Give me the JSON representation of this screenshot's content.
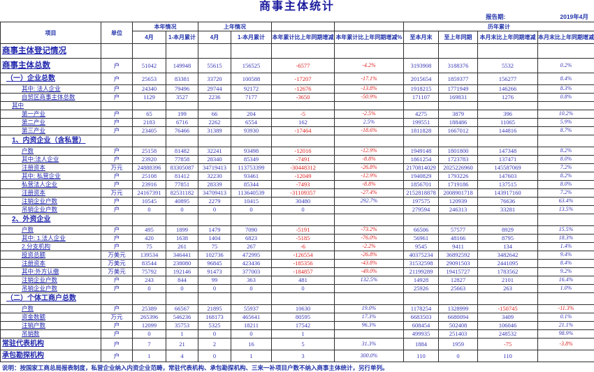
{
  "title": "商事主体统计",
  "report_period_label": "报告期:",
  "report_period_value": "2019年4月",
  "header": {
    "item": "项目",
    "unit": "单位",
    "this_year_group": "本年情况",
    "last_year_group": "上年情况",
    "historical_group": "历年累计",
    "month": "4月",
    "ytd": "1-本月累计",
    "ytd_change": "本年累计比上年同期增减",
    "ytd_change_pct": "本年累计比上年同期增减%",
    "to_month_end": "至本月末",
    "to_last_year_same_period": "至上年同期",
    "month_end_change": "本月末比上年同期增减",
    "month_end_change_pct": "本月末比上年同期增减%"
  },
  "rows": [
    {
      "label": "商事主体登记情况",
      "unit": "",
      "style": "r-tall",
      "indent": 0,
      "values": [
        "",
        "",
        "",
        "",
        "",
        "",
        "",
        "",
        "",
        ""
      ]
    },
    {
      "label": "商事主体总数",
      "unit": "户",
      "style": "r-tall",
      "indent": 0,
      "values": [
        "51042",
        "149948",
        "55615",
        "156525",
        "-6577",
        "-4.2%",
        "3193908",
        "3188376",
        "5532",
        "0.2%"
      ]
    },
    {
      "label": "（一）企业总数",
      "unit": "户",
      "style": "r-sec",
      "indent": 1,
      "values": [
        "25653",
        "83381",
        "33720",
        "100588",
        "-17207",
        "-17.1%",
        "2015654",
        "1859377",
        "156277",
        "8.4%"
      ]
    },
    {
      "label": "其中: 法人企业",
      "unit": "户",
      "style": "r-norm",
      "indent": 3,
      "values": [
        "24340",
        "79496",
        "29744",
        "92172",
        "-12676",
        "-13.8%",
        "1918215",
        "1771949",
        "146266",
        "8.3%"
      ]
    },
    {
      "label": "自贸区商事主体总数",
      "unit": "户",
      "style": "r-norm",
      "indent": 3,
      "values": [
        "1129",
        "3527",
        "2236",
        "7177",
        "-3650",
        "-50.9%",
        "171107",
        "169831",
        "1276",
        "0.8%"
      ]
    },
    {
      "label": "其中",
      "unit": "",
      "style": "r-norm",
      "indent": 2,
      "values": [
        "",
        "",
        "",
        "",
        "",
        "",
        "",
        "",
        "",
        ""
      ]
    },
    {
      "label": "第一产业",
      "unit": "户",
      "style": "r-norm",
      "indent": 3,
      "values": [
        "65",
        "199",
        "66",
        "204",
        "-5",
        "-2.5%",
        "4275",
        "3879",
        "396",
        "10.2%"
      ]
    },
    {
      "label": "第二产业",
      "unit": "户",
      "style": "r-norm",
      "indent": 3,
      "values": [
        "2183",
        "6716",
        "2262",
        "6554",
        "162",
        "2.5%",
        "199551",
        "188486",
        "11065",
        "5.9%"
      ]
    },
    {
      "label": "第三产业",
      "unit": "户",
      "style": "r-norm",
      "indent": 3,
      "values": [
        "23405",
        "76466",
        "31389",
        "93930",
        "-17464",
        "-18.6%",
        "1811828",
        "1667012",
        "144816",
        "8.7%"
      ]
    },
    {
      "label": "1、内资企业（含私营）",
      "unit": "",
      "style": "r-sec",
      "indent": 2,
      "values": [
        "",
        "",
        "",
        "",
        "",
        "",
        "",
        "",
        "",
        ""
      ]
    },
    {
      "label": "户数",
      "unit": "户",
      "style": "r-norm",
      "indent": 3,
      "values": [
        "25158",
        "81482",
        "32241",
        "93498",
        "-12016",
        "-12.9%",
        "1949148",
        "1801800",
        "147348",
        "8.2%"
      ]
    },
    {
      "label": "其中:法人企业",
      "unit": "户",
      "style": "r-norm",
      "indent": 3,
      "values": [
        "23920",
        "77858",
        "28340",
        "85349",
        "-7491",
        "-8.8%",
        "1861254",
        "1723783",
        "137471",
        "8.0%"
      ]
    },
    {
      "label": "注册资本",
      "unit": "万元",
      "style": "r-norm",
      "indent": 3,
      "values": [
        "24888396",
        "83305087",
        "34719413",
        "113753399",
        "-30448312",
        "-26.8%",
        "2170814029",
        "2025226960",
        "145587069",
        "7.2%"
      ]
    },
    {
      "label": "其中: 私营企业",
      "unit": "户",
      "style": "r-norm",
      "indent": 3,
      "values": [
        "25108",
        "81412",
        "32230",
        "93461",
        "-12049",
        "-12.9%",
        "1940829",
        "1793226",
        "147603",
        "8.2%"
      ]
    },
    {
      "label": "私营法人企业",
      "unit": "户",
      "style": "r-norm",
      "indent": 3,
      "values": [
        "23916",
        "77851",
        "28339",
        "85344",
        "-7493",
        "-8.8%",
        "1856701",
        "1719186",
        "137515",
        "8.0%"
      ]
    },
    {
      "label": "注册资本",
      "unit": "万元",
      "style": "r-norm",
      "indent": 3,
      "values": [
        "24167391",
        "82531182",
        "34709413",
        "113640539",
        "-31109357",
        "-27.4%",
        "2152818878",
        "2008901718",
        "143917160",
        "7.2%"
      ]
    },
    {
      "label": "注销企业户数",
      "unit": "户",
      "style": "r-norm",
      "indent": 3,
      "values": [
        "10545",
        "40895",
        "2279",
        "10415",
        "30480",
        "292.7%",
        "197575",
        "120939",
        "76636",
        "63.4%"
      ]
    },
    {
      "label": "吊销企业户数",
      "unit": "户",
      "style": "r-norm",
      "indent": 3,
      "values": [
        "0",
        "0",
        "0",
        "0",
        "0",
        "",
        "279594",
        "246313",
        "33281",
        "13.5%"
      ]
    },
    {
      "label": "2、外资企业",
      "unit": "",
      "style": "r-sec",
      "indent": 2,
      "values": [
        "",
        "",
        "",
        "",
        "",
        "",
        "",
        "",
        "",
        ""
      ]
    },
    {
      "label": "户数",
      "unit": "户",
      "style": "r-norm",
      "indent": 3,
      "values": [
        "495",
        "1899",
        "1479",
        "7090",
        "-5191",
        "-73.2%",
        "66506",
        "57577",
        "8929",
        "15.5%"
      ]
    },
    {
      "label": "其中: 1.法人企业",
      "unit": "户",
      "style": "r-norm",
      "indent": 3,
      "values": [
        "420",
        "1638",
        "1404",
        "6823",
        "-5185",
        "-76.0%",
        "56961",
        "48166",
        "8795",
        "18.3%"
      ]
    },
    {
      "label": "2.分支机构",
      "unit": "户",
      "style": "r-norm",
      "indent": 3,
      "values": [
        "75",
        "261",
        "75",
        "267",
        "-6",
        "-2.2%",
        "9545",
        "9411",
        "134",
        "1.4%"
      ]
    },
    {
      "label": "投资总额",
      "unit": "万美元",
      "style": "r-norm",
      "indent": 3,
      "values": [
        "139534",
        "346441",
        "102736",
        "472995",
        "-126554",
        "-26.8%",
        "40375234",
        "36892592",
        "3482642",
        "9.4%"
      ]
    },
    {
      "label": "注册资本",
      "unit": "万美元",
      "style": "r-norm",
      "indent": 3,
      "values": [
        "83544",
        "238080",
        "96845",
        "423436",
        "-185356",
        "-43.8%",
        "31532598",
        "29091503",
        "2441095",
        "8.4%"
      ]
    },
    {
      "label": "其中:外方认缴",
      "unit": "万美元",
      "style": "r-norm",
      "indent": 3,
      "values": [
        "75792",
        "192146",
        "91473",
        "377003",
        "-184857",
        "-49.0%",
        "21199289",
        "19415727",
        "1783562",
        "9.2%"
      ]
    },
    {
      "label": "注销企业户数",
      "unit": "户",
      "style": "r-norm",
      "indent": 3,
      "values": [
        "243",
        "844",
        "99",
        "363",
        "481",
        "132.5%",
        "14928",
        "12827",
        "2101",
        "16.4%"
      ]
    },
    {
      "label": "吊销企业户数",
      "unit": "户",
      "style": "r-norm",
      "indent": 3,
      "values": [
        "0",
        "0",
        "0",
        "0",
        "0",
        "",
        "25926",
        "25663",
        "263",
        "1.0%"
      ]
    },
    {
      "label": "（二）个体工商户总数",
      "unit": "",
      "style": "r-sec",
      "indent": 1,
      "values": [
        "",
        "",
        "",
        "",
        "",
        "",
        "",
        "",
        "",
        ""
      ]
    },
    {
      "label": "户数",
      "unit": "户",
      "style": "r-norm",
      "indent": 3,
      "values": [
        "25389",
        "66567",
        "21895",
        "55937",
        "10630",
        "19.0%",
        "1178254",
        "1328999",
        "-150745",
        "-11.3%"
      ]
    },
    {
      "label": "资金数额",
      "unit": "万元",
      "style": "r-norm",
      "indent": 3,
      "values": [
        "265396",
        "546236",
        "168173",
        "465641",
        "80595",
        "17.3%",
        "6683503",
        "6680094",
        "3409",
        "0.1%"
      ]
    },
    {
      "label": "注销户数",
      "unit": "户",
      "style": "r-norm",
      "indent": 3,
      "values": [
        "12099",
        "35753",
        "5325",
        "18211",
        "17542",
        "96.3%",
        "608454",
        "502408",
        "106046",
        "21.1%"
      ]
    },
    {
      "label": "吊销数",
      "unit": "户",
      "style": "r-norm",
      "indent": 3,
      "values": [
        "0",
        "1",
        "0",
        "0",
        "1",
        "",
        "499935",
        "251403",
        "248532",
        "98.9%"
      ]
    },
    {
      "label": "常驻代表机构",
      "unit": "户",
      "style": "r-sec",
      "indent": 0,
      "values": [
        "7",
        "21",
        "2",
        "16",
        "5",
        "31.3%",
        "1884",
        "1959",
        "-75",
        "-3.8%"
      ]
    },
    {
      "label": "承包勘探机构",
      "unit": "户",
      "style": "r-sec",
      "indent": 0,
      "values": [
        "1",
        "4",
        "0",
        "1",
        "3",
        "300.0%",
        "110",
        "0",
        "110",
        ""
      ]
    }
  ],
  "note": "说明：按国家工商总局报表制度，私营企业纳入内资企业范畴，常驻代表机构、承包勘探机构、三来一补项目户数不纳入商事主体统计，另行单列。"
}
